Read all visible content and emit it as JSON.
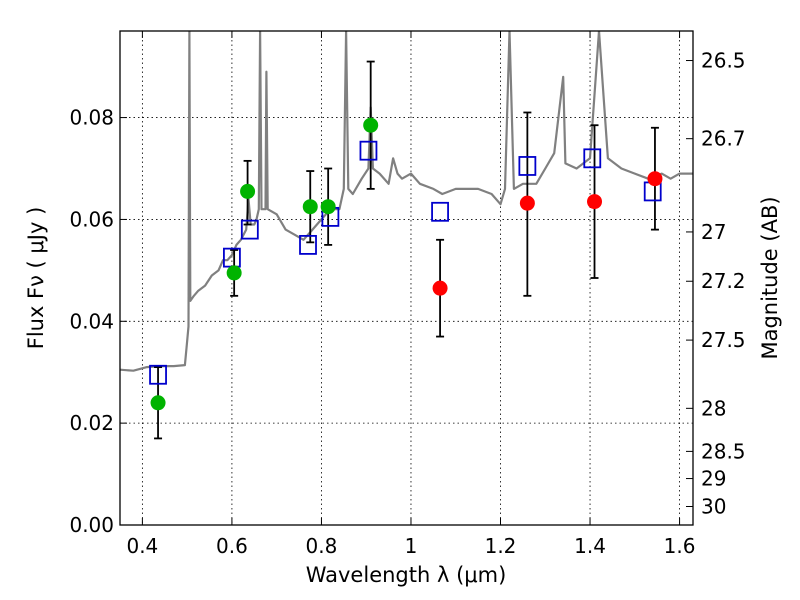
{
  "chart_data": {
    "type": "scatter",
    "title": "",
    "xlabel": "Wavelength  λ (μm)",
    "ylabel": "Flux  Fν  ( μJy )",
    "ylabel_right": "Magnitude (AB)",
    "xlim": [
      0.35,
      1.63
    ],
    "ylim": [
      0.0,
      0.097
    ],
    "grid": true,
    "legend": "none",
    "x_ticks": [
      0.4,
      0.6,
      0.8,
      1.0,
      1.2,
      1.4,
      1.6
    ],
    "x_tick_labels": [
      "0.4",
      "0.6",
      "0.8",
      "1",
      "1.2",
      "1.4",
      "1.6"
    ],
    "y_ticks": [
      0.0,
      0.02,
      0.04,
      0.06,
      0.08
    ],
    "y_tick_labels": [
      "0.00",
      "0.02",
      "0.04",
      "0.06",
      "0.08"
    ],
    "right_ticks": [
      {
        "label": "26.5",
        "mag": 26.5
      },
      {
        "label": "26.7",
        "mag": 26.7
      },
      {
        "label": "27",
        "mag": 27.0
      },
      {
        "label": "27.2",
        "mag": 27.2
      },
      {
        "label": "27.5",
        "mag": 27.5
      },
      {
        "label": "28",
        "mag": 28.0
      },
      {
        "label": "28.5",
        "mag": 28.5
      },
      {
        "label": "29",
        "mag": 29.0
      },
      {
        "label": "30",
        "mag": 30.0
      }
    ],
    "colors": {
      "spectrum": "#808080",
      "green": "#00b300",
      "red": "#ff0000",
      "model": "#0000cc",
      "errorbar": "#000000"
    },
    "series": [
      {
        "role": "spectrum",
        "points": [
          [
            0.35,
            0.0305
          ],
          [
            0.38,
            0.0303
          ],
          [
            0.41,
            0.031
          ],
          [
            0.44,
            0.0312
          ],
          [
            0.47,
            0.0312
          ],
          [
            0.495,
            0.0314
          ],
          [
            0.5,
            0.036
          ],
          [
            0.503,
            0.039
          ],
          [
            0.505,
            0.097
          ],
          [
            0.507,
            0.044
          ],
          [
            0.515,
            0.045
          ],
          [
            0.525,
            0.046
          ],
          [
            0.54,
            0.047
          ],
          [
            0.555,
            0.049
          ],
          [
            0.57,
            0.05
          ],
          [
            0.58,
            0.052
          ],
          [
            0.59,
            0.052
          ],
          [
            0.6,
            0.053
          ],
          [
            0.61,
            0.055
          ],
          [
            0.62,
            0.056
          ],
          [
            0.632,
            0.058
          ],
          [
            0.637,
            0.064
          ],
          [
            0.642,
            0.059
          ],
          [
            0.65,
            0.059
          ],
          [
            0.655,
            0.06
          ],
          [
            0.66,
            0.062
          ],
          [
            0.663,
            0.097
          ],
          [
            0.666,
            0.062
          ],
          [
            0.675,
            0.062
          ],
          [
            0.677,
            0.089
          ],
          [
            0.68,
            0.062
          ],
          [
            0.7,
            0.061
          ],
          [
            0.72,
            0.058
          ],
          [
            0.74,
            0.057
          ],
          [
            0.76,
            0.056
          ],
          [
            0.78,
            0.058
          ],
          [
            0.8,
            0.06
          ],
          [
            0.82,
            0.062
          ],
          [
            0.84,
            0.062
          ],
          [
            0.85,
            0.066
          ],
          [
            0.855,
            0.097
          ],
          [
            0.86,
            0.066
          ],
          [
            0.87,
            0.065
          ],
          [
            0.89,
            0.068
          ],
          [
            0.905,
            0.07
          ],
          [
            0.91,
            0.082
          ],
          [
            0.915,
            0.07
          ],
          [
            0.93,
            0.069
          ],
          [
            0.95,
            0.067
          ],
          [
            0.96,
            0.072
          ],
          [
            0.97,
            0.069
          ],
          [
            0.98,
            0.068
          ],
          [
            1.0,
            0.069
          ],
          [
            1.02,
            0.067
          ],
          [
            1.05,
            0.066
          ],
          [
            1.07,
            0.065
          ],
          [
            1.1,
            0.066
          ],
          [
            1.15,
            0.066
          ],
          [
            1.18,
            0.065
          ],
          [
            1.2,
            0.063
          ],
          [
            1.21,
            0.066
          ],
          [
            1.22,
            0.097
          ],
          [
            1.23,
            0.066
          ],
          [
            1.25,
            0.067
          ],
          [
            1.28,
            0.067
          ],
          [
            1.3,
            0.07
          ],
          [
            1.32,
            0.073
          ],
          [
            1.34,
            0.088
          ],
          [
            1.345,
            0.071
          ],
          [
            1.37,
            0.07
          ],
          [
            1.4,
            0.072
          ],
          [
            1.42,
            0.097
          ],
          [
            1.44,
            0.072
          ],
          [
            1.47,
            0.07
          ],
          [
            1.5,
            0.069
          ],
          [
            1.53,
            0.068
          ],
          [
            1.56,
            0.069
          ],
          [
            1.58,
            0.068
          ],
          [
            1.6,
            0.069
          ],
          [
            1.63,
            0.069
          ]
        ]
      },
      {
        "role": "errorbars",
        "items": [
          {
            "x": 0.435,
            "y": 0.024,
            "lo": 0.017,
            "hi": 0.031
          },
          {
            "x": 0.605,
            "y": 0.0495,
            "lo": 0.045,
            "hi": 0.054
          },
          {
            "x": 0.635,
            "y": 0.0655,
            "lo": 0.059,
            "hi": 0.0715
          },
          {
            "x": 0.775,
            "y": 0.0625,
            "lo": 0.0555,
            "hi": 0.0695
          },
          {
            "x": 0.815,
            "y": 0.0625,
            "lo": 0.055,
            "hi": 0.07
          },
          {
            "x": 0.91,
            "y": 0.0785,
            "lo": 0.066,
            "hi": 0.091
          },
          {
            "x": 1.065,
            "y": 0.0465,
            "lo": 0.037,
            "hi": 0.056
          },
          {
            "x": 1.26,
            "y": 0.0632,
            "lo": 0.045,
            "hi": 0.081
          },
          {
            "x": 1.41,
            "y": 0.0635,
            "lo": 0.0485,
            "hi": 0.0785
          },
          {
            "x": 1.545,
            "y": 0.068,
            "lo": 0.058,
            "hi": 0.078
          }
        ]
      },
      {
        "role": "model",
        "marker": "square",
        "points": [
          [
            0.435,
            0.0295
          ],
          [
            0.6,
            0.0525
          ],
          [
            0.64,
            0.058
          ],
          [
            0.77,
            0.055
          ],
          [
            0.82,
            0.0605
          ],
          [
            0.905,
            0.0735
          ],
          [
            1.065,
            0.0615
          ],
          [
            1.26,
            0.0705
          ],
          [
            1.405,
            0.072
          ],
          [
            1.54,
            0.0655
          ]
        ]
      },
      {
        "role": "detections",
        "marker": "circle",
        "color": "green",
        "points": [
          [
            0.435,
            0.024
          ],
          [
            0.605,
            0.0495
          ],
          [
            0.635,
            0.0655
          ],
          [
            0.775,
            0.0625
          ],
          [
            0.815,
            0.0625
          ],
          [
            0.91,
            0.0785
          ]
        ]
      },
      {
        "role": "detections",
        "marker": "circle",
        "color": "red",
        "points": [
          [
            1.065,
            0.0465
          ],
          [
            1.26,
            0.0632
          ],
          [
            1.41,
            0.0635
          ],
          [
            1.545,
            0.068
          ]
        ]
      }
    ]
  }
}
